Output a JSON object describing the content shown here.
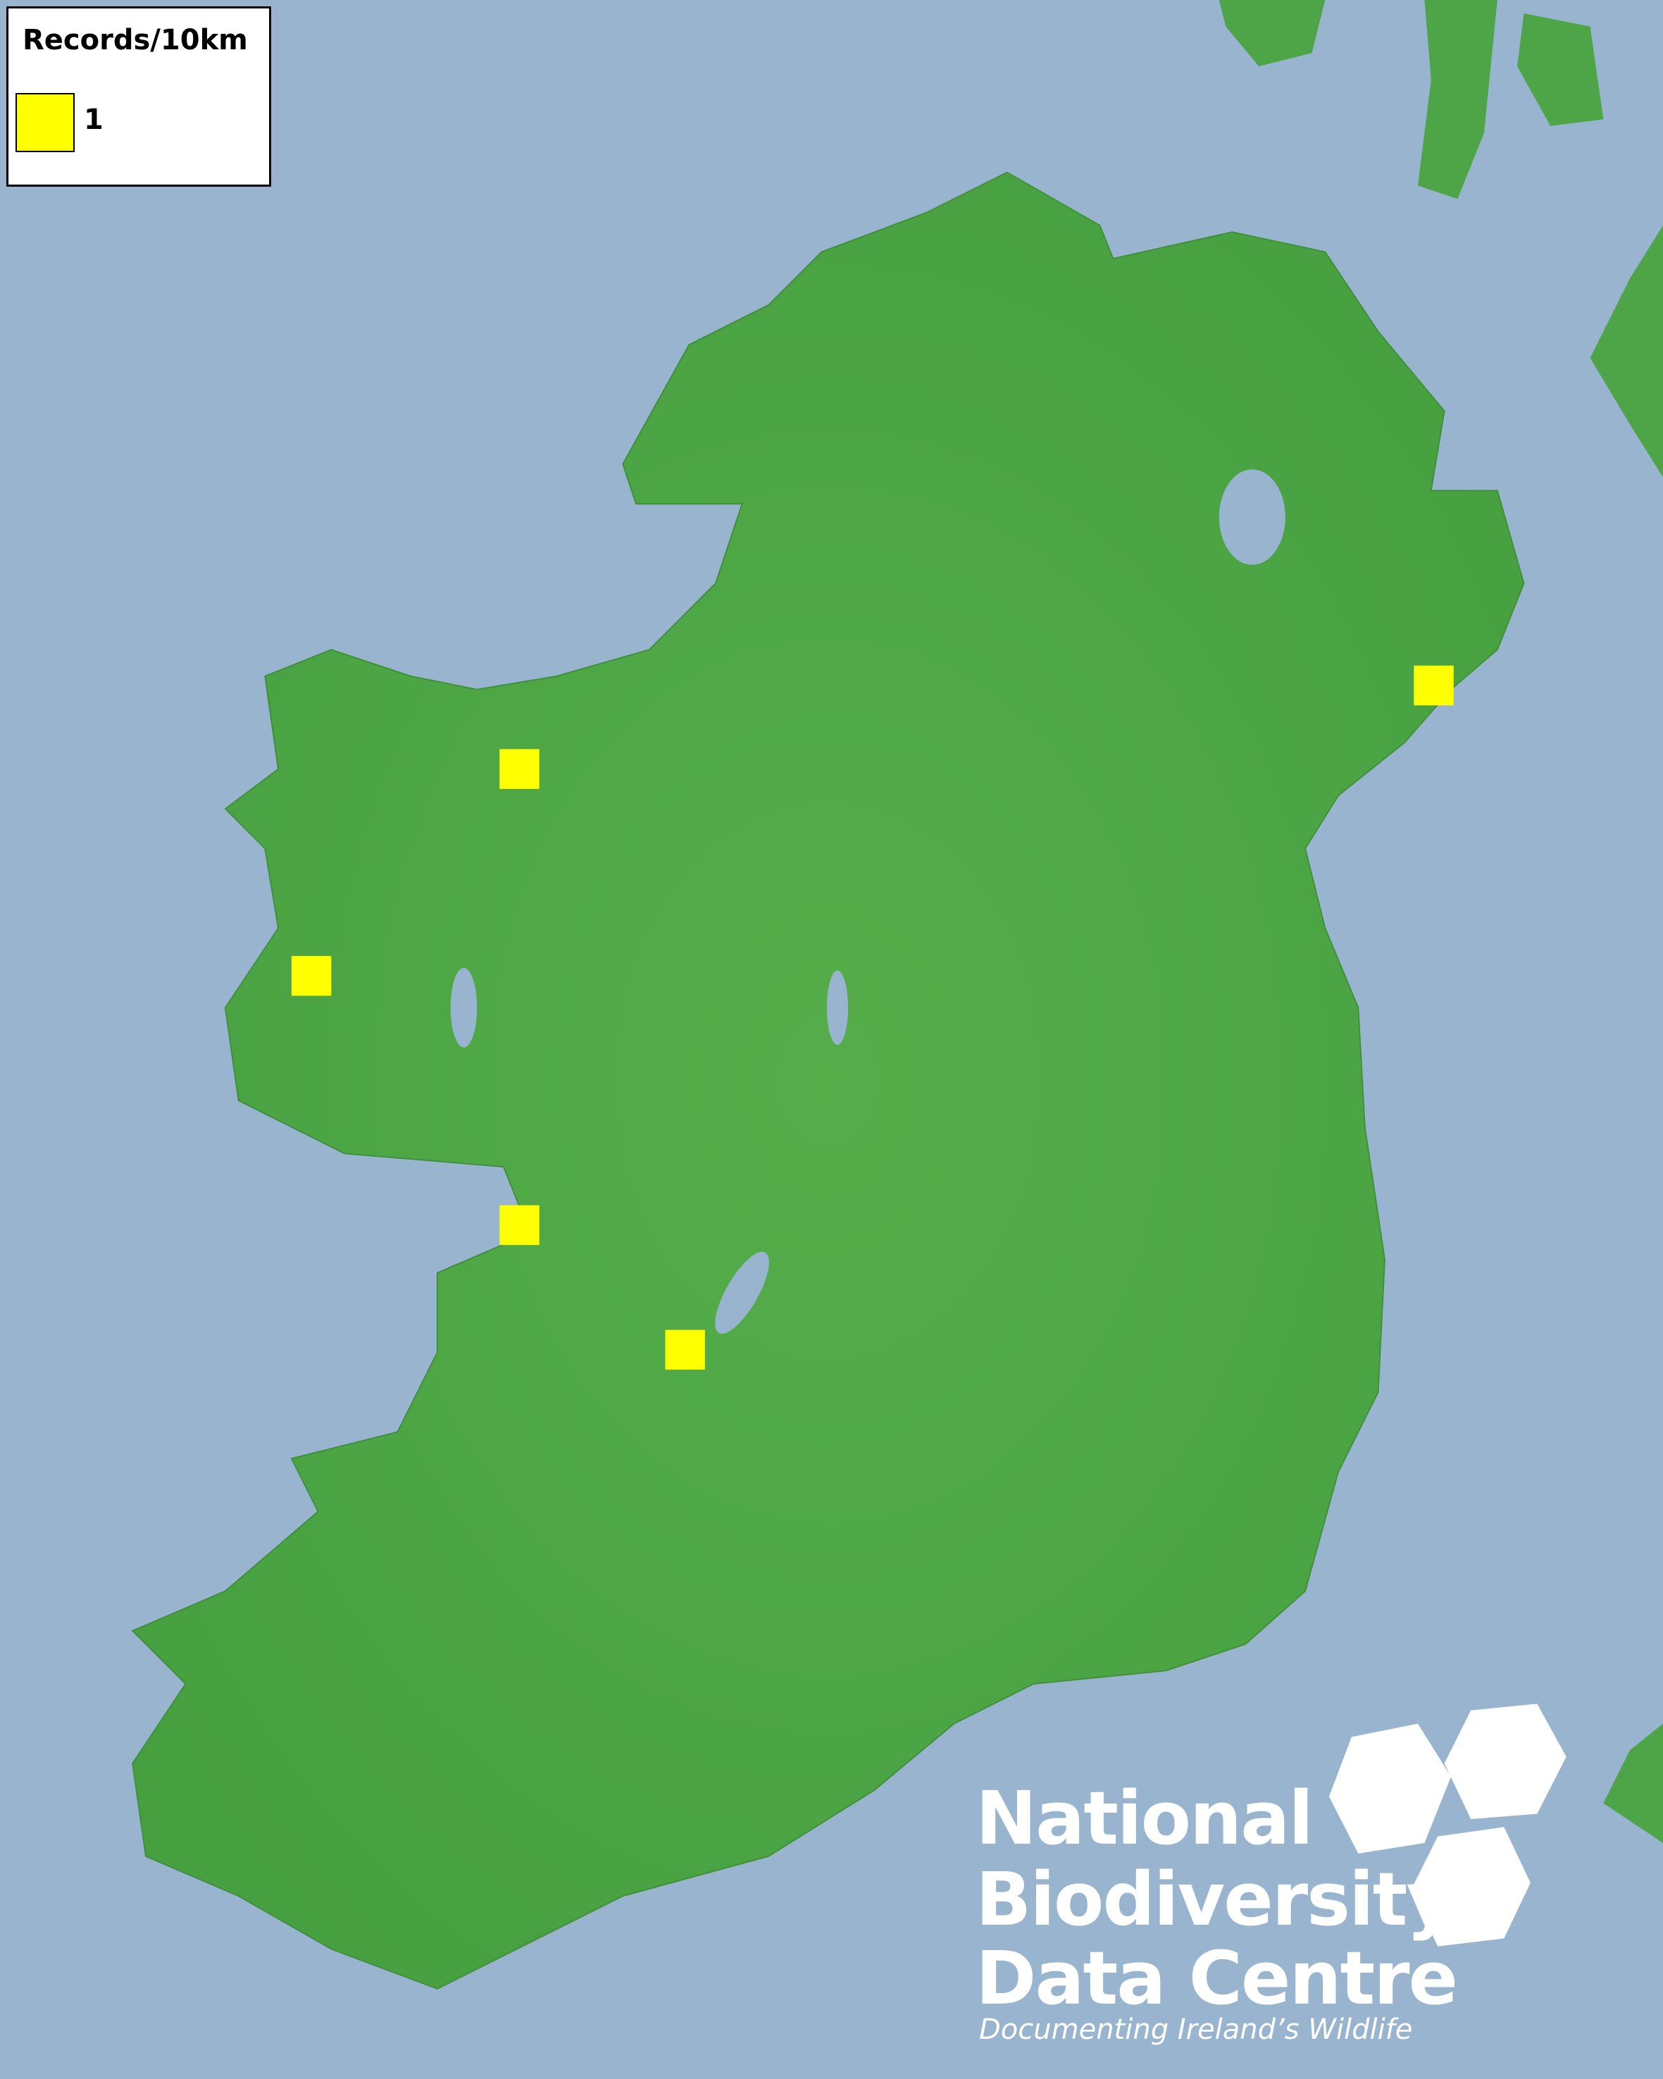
{
  "legend": {
    "title": "Records/10km",
    "items": [
      {
        "label": "1",
        "color": "#ffff00"
      }
    ]
  },
  "map": {
    "sea_color": "#98b4ce",
    "land_color": "#4ea547",
    "records": [
      {
        "location": "north-west Mayo",
        "count": 1
      },
      {
        "location": "west Connemara",
        "count": 1
      },
      {
        "location": "west Clare",
        "count": 1
      },
      {
        "location": "east Clare / Lough Derg",
        "count": 1
      },
      {
        "location": "County Down coast",
        "count": 1
      }
    ]
  },
  "logo": {
    "line1": "National",
    "line2": "Biodiversity",
    "line3": "Data Centre",
    "tagline": "Documenting Ireland’s Wildlife"
  }
}
